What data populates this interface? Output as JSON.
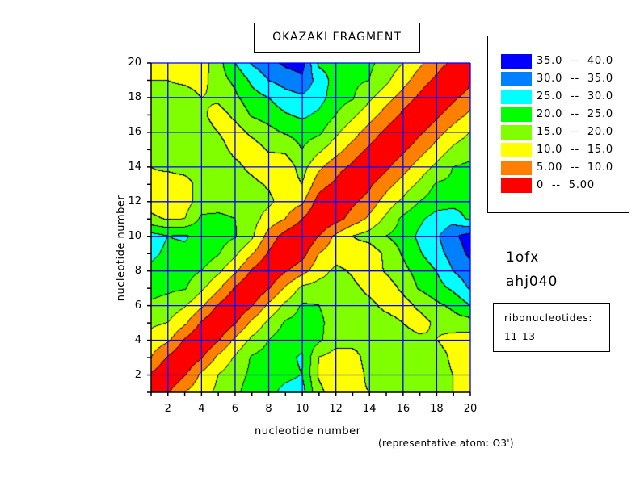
{
  "chart_data": {
    "type": "contour",
    "title": "OKAZAKI FRAGMENT",
    "xlabel": "nucleotide number",
    "ylabel": "nucleotide number",
    "note": "(representative atom: O3')",
    "xlim": [
      1,
      20
    ],
    "ylim": [
      1,
      20
    ],
    "xticks": [
      2,
      4,
      6,
      8,
      10,
      12,
      14,
      16,
      18,
      20
    ],
    "yticks": [
      2,
      4,
      6,
      8,
      10,
      12,
      14,
      16,
      18,
      20
    ],
    "grid": true,
    "levels": [
      0,
      5,
      10,
      15,
      20,
      25,
      30,
      35,
      40
    ],
    "legend": [
      {
        "label": "35.0  --  40.0",
        "color": "#0000ff"
      },
      {
        "label": "30.0  --  35.0",
        "color": "#0080ff"
      },
      {
        "label": "25.0  --  30.0",
        "color": "#00ffff"
      },
      {
        "label": "20.0  --  25.0",
        "color": "#00ff00"
      },
      {
        "label": "15.0  --  20.0",
        "color": "#80ff00"
      },
      {
        "label": "10.0  --  15.0",
        "color": "#ffff00"
      },
      {
        "label": "5.00  --  10.0",
        "color": "#ff8000"
      },
      {
        "label": "0  --  5.00",
        "color": "#ff0000"
      }
    ],
    "legend_position": "right",
    "z": [
      [
        0,
        4.5,
        10,
        13,
        16,
        19,
        22,
        24,
        26,
        27,
        16,
        13,
        14,
        15,
        17,
        17.5,
        20,
        17,
        15,
        12
      ],
      [
        4.5,
        0,
        4.5,
        11,
        15,
        18,
        21,
        23,
        24,
        25,
        14.5,
        12,
        12.5,
        16,
        17.5,
        18,
        18,
        17,
        15,
        12
      ],
      [
        10,
        4.5,
        0,
        4.5,
        11,
        15.5,
        20.5,
        22,
        24,
        25.5,
        15,
        13,
        13,
        17,
        17.5,
        17.5,
        17.5,
        17.5,
        14,
        12
      ],
      [
        13,
        11,
        4.5,
        0,
        4.5,
        11,
        16,
        20,
        23,
        23.5,
        21,
        17,
        17,
        17,
        17,
        17,
        16,
        15,
        13,
        12.5
      ],
      [
        16,
        15,
        11,
        4.5,
        0,
        4.5,
        11,
        16,
        20.5,
        22,
        21,
        18,
        18,
        17,
        16.5,
        15,
        13,
        16,
        18,
        18
      ],
      [
        19,
        18,
        15.5,
        11,
        4.5,
        0,
        4.5,
        11,
        16,
        20.5,
        20,
        18,
        17,
        16,
        14,
        13,
        16,
        19,
        21,
        25
      ],
      [
        22,
        21,
        20.5,
        16,
        11,
        4.5,
        0,
        4.5,
        10.5,
        16,
        17,
        17,
        16,
        14,
        12.5,
        16,
        20.5,
        23,
        26,
        30.5
      ],
      [
        24,
        23,
        22,
        20,
        16,
        11,
        4.5,
        0,
        4.5,
        8,
        13,
        16,
        14.5,
        12,
        15.5,
        18.5,
        22,
        25,
        30,
        33
      ],
      [
        26,
        24,
        24,
        23,
        20.5,
        16,
        10.5,
        4.5,
        0,
        3,
        10,
        13,
        12.5,
        12,
        16,
        20.5,
        24.5,
        28,
        32,
        36
      ],
      [
        27,
        25,
        25.5,
        23.5,
        22,
        20.5,
        16,
        8,
        3,
        0,
        5,
        11,
        15,
        17,
        20,
        22,
        26,
        29,
        34,
        37
      ],
      [
        16,
        14.5,
        15,
        21,
        21,
        20,
        17,
        13,
        10,
        5,
        0,
        3,
        7,
        11,
        16,
        21,
        24,
        27,
        28,
        24
      ],
      [
        13,
        12,
        13,
        17,
        18,
        18,
        17,
        16,
        13,
        11,
        3,
        0,
        4,
        7,
        12,
        16,
        20,
        22.5,
        23,
        23
      ],
      [
        14,
        12.5,
        13,
        17,
        18,
        17,
        16,
        14.5,
        12.5,
        15,
        7,
        4,
        0,
        4,
        8,
        12,
        16,
        20.5,
        21,
        24
      ],
      [
        15,
        16,
        17,
        17,
        17,
        16,
        14,
        12,
        12,
        17,
        11,
        7,
        4,
        0,
        4,
        8,
        12,
        16,
        20,
        21
      ],
      [
        17,
        17.5,
        17.5,
        17,
        16.5,
        14,
        12.5,
        15.5,
        16,
        20,
        16,
        12,
        8,
        4,
        0,
        4,
        8,
        12,
        16,
        18
      ],
      [
        17.5,
        18,
        17.5,
        17,
        15,
        13,
        16,
        18.5,
        20.5,
        22,
        21,
        16,
        12,
        8,
        4,
        0,
        4,
        8,
        12,
        15
      ],
      [
        20,
        18,
        17.5,
        16,
        13,
        16,
        20.5,
        22,
        24.5,
        26,
        24,
        20,
        16,
        12,
        8,
        4,
        0,
        4,
        7.5,
        11
      ],
      [
        17,
        17,
        17.5,
        15,
        16,
        19,
        23,
        25,
        28,
        29,
        27,
        22.5,
        20.5,
        16,
        12,
        8,
        4,
        0,
        4,
        7
      ],
      [
        15,
        15,
        14,
        13,
        18,
        21,
        26,
        30,
        32,
        34,
        28,
        23,
        21,
        20,
        16,
        12,
        7.5,
        4,
        0,
        4
      ],
      [
        12,
        12,
        12,
        12.5,
        18,
        25,
        30.5,
        33,
        36,
        37,
        24,
        23,
        24,
        21,
        18,
        15,
        11,
        7,
        4,
        0
      ]
    ]
  },
  "annotations": {
    "structure_id": "1ofx",
    "code": "ahj040",
    "ribo_label": "ribonucleotides:",
    "ribo_range": "11-13"
  },
  "colors": {
    "grid": "#0000ff",
    "contour_line": "#000000"
  }
}
